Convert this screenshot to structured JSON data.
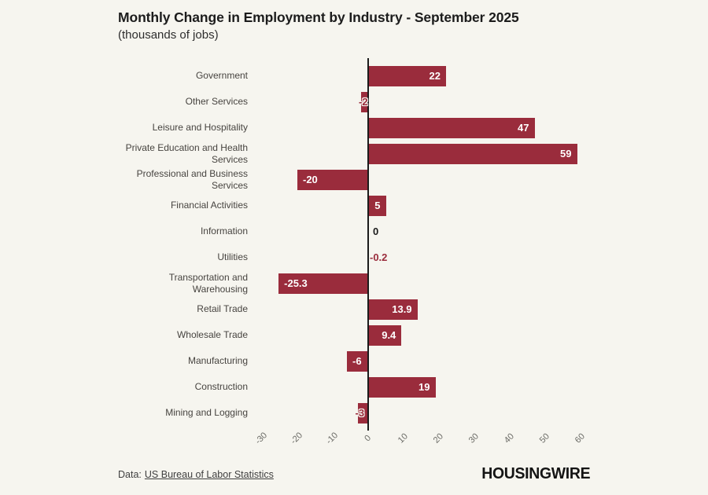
{
  "chart_data": {
    "type": "bar",
    "orientation": "horizontal",
    "title": "Monthly Change in Employment by Industry - September 2025",
    "subtitle": "(thousands of jobs)",
    "categories": [
      "Government",
      "Other Services",
      "Leisure and Hospitality",
      "Private Education and Health Services",
      "Professional and Business Services",
      "Financial Activities",
      "Information",
      "Utilities",
      "Transportation and Warehousing",
      "Retail Trade",
      "Wholesale Trade",
      "Manufacturing",
      "Construction",
      "Mining and Logging"
    ],
    "values": [
      22,
      -2,
      47,
      59,
      -20,
      5,
      0,
      -0.2,
      -25.3,
      13.9,
      9.4,
      -6,
      19,
      -3
    ],
    "value_labels": [
      "22",
      "-2",
      "47",
      "59",
      "-20",
      "5",
      "0",
      "-0.2",
      "-25.3",
      "13.9",
      "9.4",
      "-6",
      "19",
      "-3"
    ],
    "x_ticks": [
      -30,
      -20,
      -10,
      0,
      10,
      20,
      30,
      40,
      50,
      60
    ],
    "xlim": [
      -30,
      63
    ],
    "bar_color": "#9a2c3c",
    "grid": false,
    "legend": false
  },
  "footer": {
    "source_prefix": "Data:",
    "source_link": "US Bureau of Labor Statistics",
    "logo": "HOUSINGWIRE"
  },
  "colors": {
    "background": "#f6f5ef",
    "bar": "#9a2c3c",
    "axis_line": "#1b1b1b",
    "tick_label": "#6b6b66",
    "category_label": "#474440"
  }
}
